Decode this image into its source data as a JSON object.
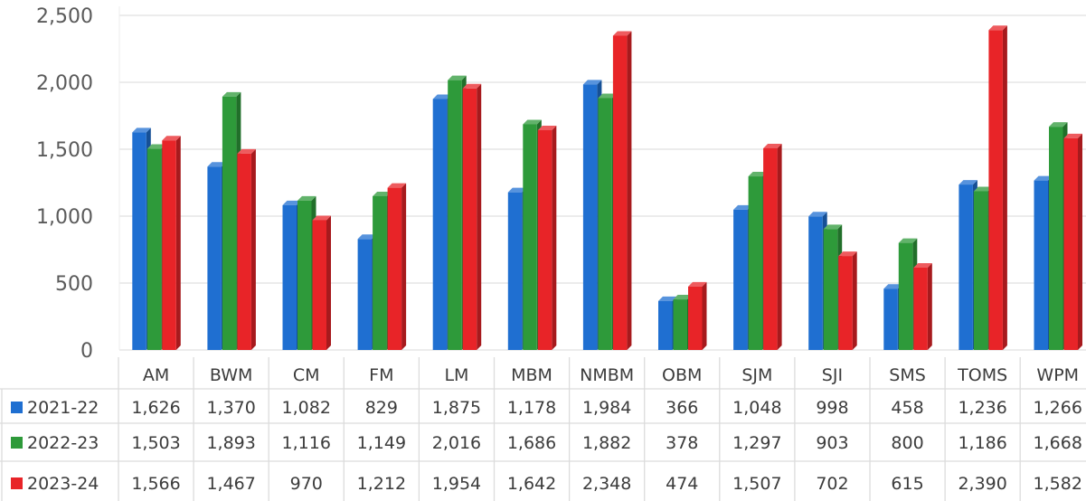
{
  "chart_data": {
    "type": "bar",
    "title": "",
    "xlabel": "",
    "ylabel": "",
    "ylim": [
      0,
      2500
    ],
    "yticks": [
      "0",
      "500",
      "1,000",
      "1,500",
      "2,000",
      "2,500"
    ],
    "categories": [
      "AM",
      "BWM",
      "CM",
      "FM",
      "LM",
      "MBM",
      "NMBM",
      "OBM",
      "SJM",
      "SJI",
      "SMS",
      "TOMS",
      "WPM"
    ],
    "series": [
      {
        "name": "2021-22",
        "color": "#1f6fd1",
        "values": [
          1626,
          1370,
          1082,
          829,
          1875,
          1178,
          1984,
          366,
          1048,
          998,
          458,
          1236,
          1266
        ],
        "labels": [
          "1,626",
          "1,370",
          "1,082",
          "829",
          "1,875",
          "1,178",
          "1,984",
          "366",
          "1,048",
          "998",
          "458",
          "1,236",
          "1,266"
        ]
      },
      {
        "name": "2022-23",
        "color": "#2e9a3a",
        "values": [
          1503,
          1893,
          1116,
          1149,
          2016,
          1686,
          1882,
          378,
          1297,
          903,
          800,
          1186,
          1668
        ],
        "labels": [
          "1,503",
          "1,893",
          "1,116",
          "1,149",
          "2,016",
          "1,686",
          "1,882",
          "378",
          "1,297",
          "903",
          "800",
          "1,186",
          "1,668"
        ]
      },
      {
        "name": "2023-24",
        "color": "#e82428",
        "values": [
          1566,
          1467,
          970,
          1212,
          1954,
          1642,
          2348,
          474,
          1507,
          702,
          615,
          2390,
          1582
        ],
        "labels": [
          "1,566",
          "1,467",
          "970",
          "1,212",
          "1,954",
          "1,642",
          "2,348",
          "474",
          "1,507",
          "702",
          "615",
          "2,390",
          "1,582"
        ]
      }
    ],
    "grid": true,
    "legend": "data-table"
  }
}
